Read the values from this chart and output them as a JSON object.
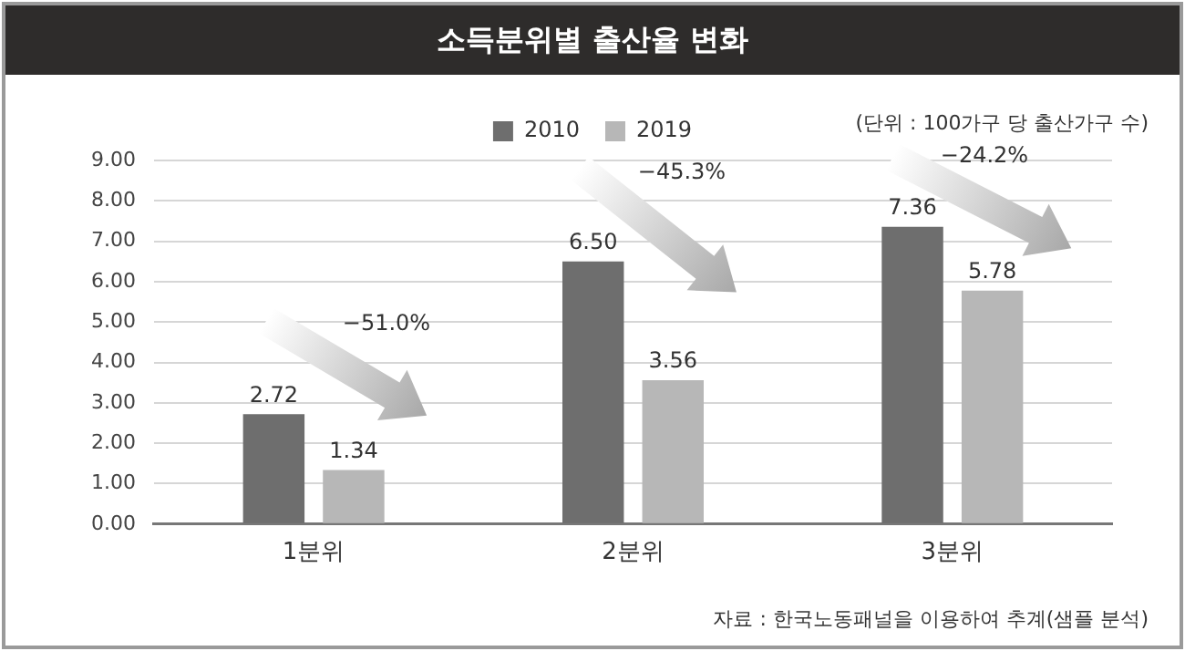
{
  "chart_data": {
    "type": "bar",
    "title": "소득분위별 출산율 변화",
    "categories": [
      "1분위",
      "2분위",
      "3분위"
    ],
    "series": [
      {
        "name": "2010",
        "color": "#6e6e6e",
        "values": [
          2.72,
          6.5,
          7.36
        ],
        "value_labels": [
          "2.72",
          "6.50",
          "7.36"
        ]
      },
      {
        "name": "2019",
        "color": "#b7b7b7",
        "values": [
          1.34,
          3.56,
          5.78
        ],
        "value_labels": [
          "1.34",
          "3.56",
          "5.78"
        ]
      }
    ],
    "ylim": [
      0,
      9
    ],
    "yticks": [
      {
        "value": 0,
        "label": "0.00"
      },
      {
        "value": 1,
        "label": "1.00"
      },
      {
        "value": 2,
        "label": "2.00"
      },
      {
        "value": 3,
        "label": "3.00"
      },
      {
        "value": 4,
        "label": "4.00"
      },
      {
        "value": 5,
        "label": "5.00"
      },
      {
        "value": 6,
        "label": "6.00"
      },
      {
        "value": 7,
        "label": "7.00"
      },
      {
        "value": 8,
        "label": "8.00"
      },
      {
        "value": 9,
        "label": "9.00"
      }
    ],
    "grid": "y",
    "legend": "top",
    "annotations": [
      "(단위 : 100가구 당 출산가구 수)",
      "−51.0%",
      "−45.3%",
      "−24.2%",
      "자료 : 한국노동패널을 이용하여 추계(샘플 분석)"
    ]
  }
}
